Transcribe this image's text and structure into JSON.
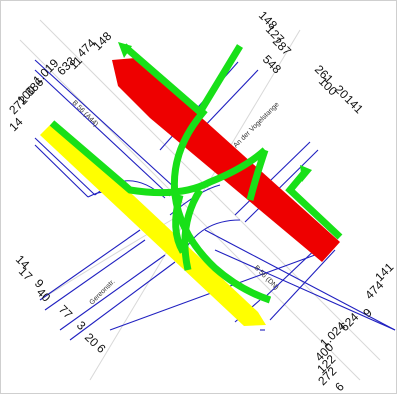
{
  "streets": {
    "top_left": "B 56 (A44)",
    "top_right": "An der Vogelstange",
    "bottom_right": "B 56 (DN)",
    "bottom_left": "Gereonstr."
  },
  "counts": {
    "left_top": [
      "148",
      "474",
      "11",
      "633",
      "1.019",
      "386",
      "100",
      "272",
      "14"
    ],
    "right_top": [
      "148",
      "127",
      "287",
      "548",
      "261",
      "100",
      "20",
      "141"
    ],
    "left_bottom": [
      "14",
      "17",
      "9",
      "40",
      "77",
      "3",
      "20",
      "6"
    ],
    "right_bottom": [
      "141",
      "474",
      "9",
      "624",
      "1.024",
      "400",
      "122",
      "272",
      "6"
    ]
  },
  "colors": {
    "green": "#18e018",
    "red": "#ee0000",
    "yellow": "#ffff00",
    "lane_lines": "#2020c0"
  }
}
